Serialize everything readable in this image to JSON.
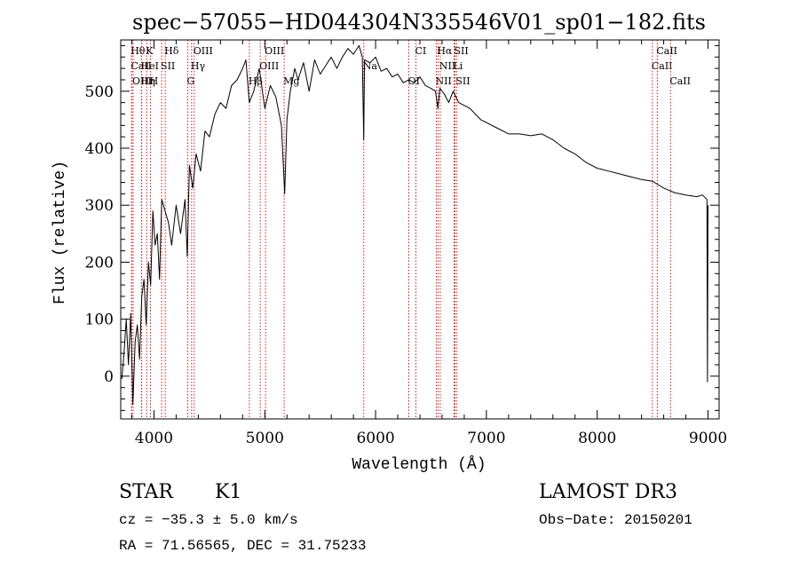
{
  "chart_data": {
    "type": "line",
    "title": "spec−57055−HD044304N335546V01_sp01−182.fits",
    "xlabel": "Wavelength (Å)",
    "ylabel": "Flux (relative)",
    "xlim": [
      3700,
      9100
    ],
    "ylim": [
      -75,
      590
    ],
    "x_ticks": [
      4000,
      5000,
      6000,
      7000,
      8000,
      9000
    ],
    "y_ticks": [
      0,
      100,
      200,
      300,
      400,
      500
    ],
    "x_tick_labels": [
      "4000",
      "5000",
      "6000",
      "7000",
      "8000",
      "9000"
    ],
    "y_tick_labels": [
      "0",
      "100",
      "200",
      "300",
      "400",
      "500"
    ],
    "series": [
      {
        "name": "spectrum",
        "x": [
          3710,
          3730,
          3750,
          3770,
          3790,
          3810,
          3830,
          3850,
          3870,
          3890,
          3910,
          3930,
          3950,
          3970,
          3990,
          4010,
          4030,
          4050,
          4070,
          4100,
          4130,
          4160,
          4200,
          4240,
          4280,
          4300,
          4320,
          4350,
          4380,
          4420,
          4460,
          4500,
          4550,
          4600,
          4650,
          4700,
          4750,
          4800,
          4830,
          4860,
          4900,
          4950,
          5000,
          5050,
          5100,
          5150,
          5180,
          5200,
          5230,
          5270,
          5300,
          5350,
          5400,
          5450,
          5500,
          5550,
          5600,
          5650,
          5700,
          5750,
          5800,
          5850,
          5880,
          5893,
          5900,
          5950,
          6000,
          6050,
          6100,
          6150,
          6200,
          6250,
          6300,
          6350,
          6400,
          6450,
          6500,
          6540,
          6563,
          6580,
          6620,
          6660,
          6700,
          6750,
          6800,
          6850,
          6900,
          6950,
          7000,
          7100,
          7200,
          7300,
          7400,
          7500,
          7600,
          7700,
          7800,
          7900,
          8000,
          8100,
          8200,
          8300,
          8400,
          8500,
          8542,
          8600,
          8662,
          8700,
          8800,
          8900,
          8950,
          8990,
          8995,
          9000
        ],
        "y": [
          -5,
          40,
          100,
          20,
          110,
          -50,
          60,
          90,
          30,
          140,
          170,
          90,
          200,
          160,
          290,
          230,
          250,
          170,
          310,
          290,
          270,
          230,
          300,
          250,
          310,
          210,
          370,
          330,
          390,
          360,
          430,
          420,
          460,
          480,
          470,
          510,
          520,
          540,
          555,
          480,
          500,
          540,
          470,
          510,
          490,
          440,
          320,
          450,
          500,
          540,
          520,
          550,
          500,
          555,
          530,
          545,
          560,
          540,
          560,
          575,
          565,
          580,
          560,
          415,
          555,
          550,
          560,
          535,
          540,
          525,
          530,
          515,
          520,
          515,
          525,
          510,
          505,
          500,
          470,
          505,
          495,
          480,
          500,
          480,
          475,
          470,
          460,
          450,
          445,
          435,
          425,
          425,
          422,
          425,
          415,
          400,
          390,
          375,
          365,
          360,
          355,
          350,
          345,
          342,
          337,
          330,
          325,
          322,
          318,
          315,
          318,
          310,
          -10,
          300
        ]
      }
    ],
    "line_markers": [
      {
        "label": "Hθ",
        "x": 3798,
        "row": 0
      },
      {
        "label": "CaII",
        "x": 3799,
        "row": 1
      },
      {
        "label": "OIII",
        "x": 3812,
        "row": 2
      },
      {
        "label": "HeI",
        "x": 3889,
        "row": 1
      },
      {
        "label": "Hη",
        "x": 3889,
        "row": 2
      },
      {
        "label": "K",
        "x": 3934,
        "row": 0
      },
      {
        "label": "H",
        "x": 3969,
        "row": 2
      },
      {
        "label": "SII",
        "x": 4069,
        "row": 1
      },
      {
        "label": "Hδ",
        "x": 4102,
        "row": 0
      },
      {
        "label": "G",
        "x": 4305,
        "row": 2
      },
      {
        "label": "Hγ",
        "x": 4340,
        "row": 1
      },
      {
        "label": "OIII",
        "x": 4363,
        "row": 0
      },
      {
        "label": "Hβ",
        "x": 4861,
        "row": 2
      },
      {
        "label": "OIII",
        "x": 4959,
        "row": 1
      },
      {
        "label": "OIII",
        "x": 5007,
        "row": 0
      },
      {
        "label": "Mg",
        "x": 5175,
        "row": 2
      },
      {
        "label": "Na",
        "x": 5893,
        "row": 1
      },
      {
        "label": "OI",
        "x": 6300,
        "row": 2
      },
      {
        "label": "CI",
        "x": 6364,
        "row": 0
      },
      {
        "label": "NII",
        "x": 6548,
        "row": 2
      },
      {
        "label": "NII",
        "x": 6583,
        "row": 1
      },
      {
        "label": "Hα",
        "x": 6563,
        "row": 0
      },
      {
        "label": "SII",
        "x": 6716,
        "row": 0
      },
      {
        "label": "Li",
        "x": 6708,
        "row": 1
      },
      {
        "label": "SII",
        "x": 6731,
        "row": 2
      },
      {
        "label": "CaII",
        "x": 8498,
        "row": 1
      },
      {
        "label": "CaII",
        "x": 8542,
        "row": 0
      },
      {
        "label": "CaII",
        "x": 8662,
        "row": 2
      }
    ]
  },
  "info": {
    "class_label": "STAR",
    "subclass": "K1",
    "survey": "LAMOST DR3",
    "cz_line": "cz = −35.3 ± 5.0 km/s",
    "obs_date": "Obs−Date: 20150201",
    "coords": "RA =  71.56565, DEC =  31.75233"
  },
  "colors": {
    "spectrum": "#000000",
    "marker": "#cc0000",
    "axis": "#000000",
    "background": "#ffffff"
  }
}
